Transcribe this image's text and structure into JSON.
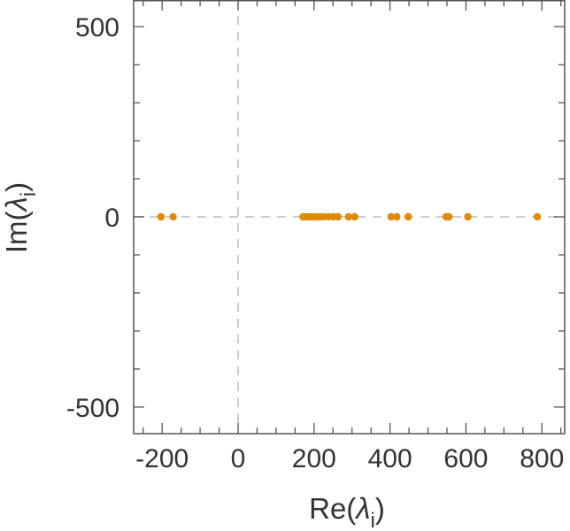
{
  "chart_data": {
    "type": "scatter",
    "xlabel": "Re(λ_i)",
    "xlabel_parts": {
      "prefix": "Re(",
      "symbol": "λ",
      "subscript": "i",
      "suffix": ")"
    },
    "ylabel": "Im(λ_i)",
    "ylabel_parts": {
      "prefix": "Im(",
      "symbol": "λ",
      "subscript": "i",
      "suffix": ")"
    },
    "xlim": [
      -275,
      860
    ],
    "ylim": [
      -570,
      570
    ],
    "x_ticks": [
      -200,
      0,
      200,
      400,
      600,
      800
    ],
    "x_tick_labels": [
      "-200",
      "0",
      "200",
      "400",
      "600",
      "800"
    ],
    "x_minor_step": 50,
    "y_ticks": [
      -500,
      0,
      500
    ],
    "y_tick_labels": [
      "-500",
      "0",
      "500"
    ],
    "y_minor_step": 100,
    "grid": false,
    "zero_lines": true,
    "marker_color": "#e08a00",
    "series": [
      {
        "points": [
          {
            "x": -203,
            "y": 0
          },
          {
            "x": -171,
            "y": 0
          },
          {
            "x": 171,
            "y": 0
          },
          {
            "x": 180,
            "y": 0
          },
          {
            "x": 188,
            "y": 0
          },
          {
            "x": 196,
            "y": 0
          },
          {
            "x": 205,
            "y": 0
          },
          {
            "x": 215,
            "y": 0
          },
          {
            "x": 225,
            "y": 0
          },
          {
            "x": 238,
            "y": 0
          },
          {
            "x": 250,
            "y": 0
          },
          {
            "x": 263,
            "y": 0
          },
          {
            "x": 291,
            "y": 0
          },
          {
            "x": 307,
            "y": 0
          },
          {
            "x": 403,
            "y": 0
          },
          {
            "x": 418,
            "y": 0
          },
          {
            "x": 448,
            "y": 0
          },
          {
            "x": 548,
            "y": 0
          },
          {
            "x": 555,
            "y": 0
          },
          {
            "x": 605,
            "y": 0
          },
          {
            "x": 788,
            "y": 0
          }
        ]
      }
    ]
  }
}
